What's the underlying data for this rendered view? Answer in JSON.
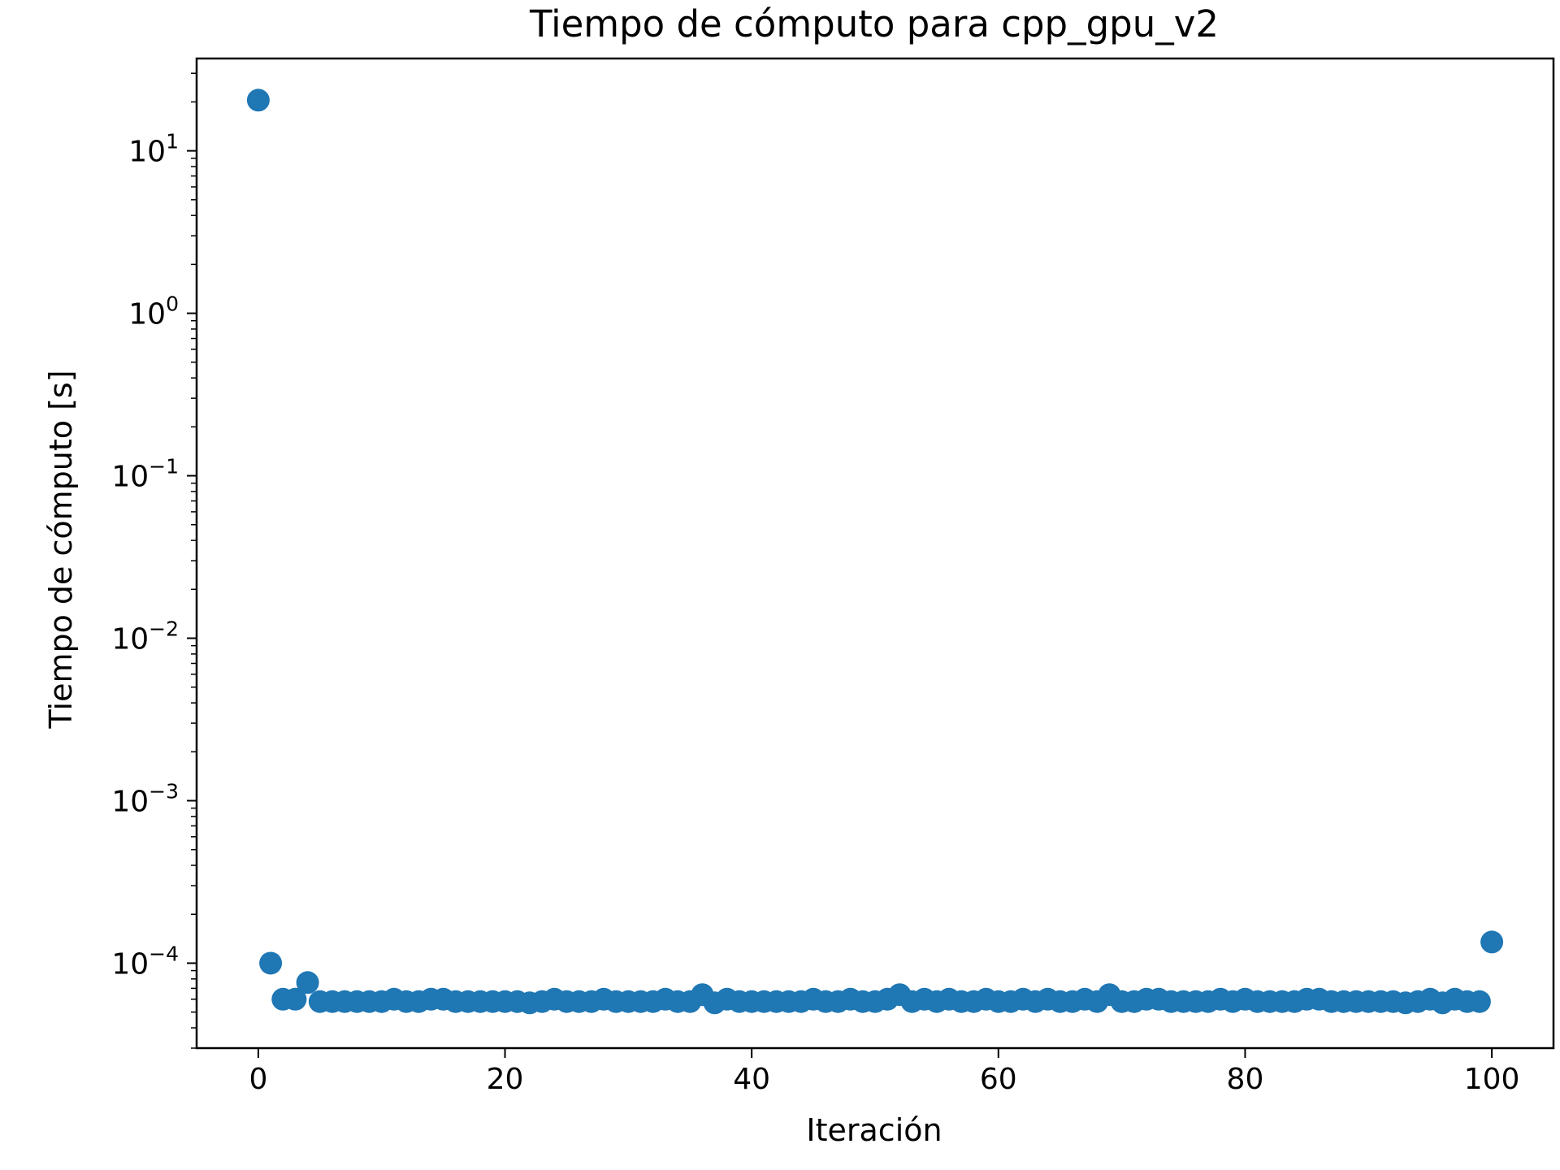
{
  "chart_data": {
    "type": "scatter",
    "title": "Tiempo de cómputo para cpp_gpu_v2",
    "xlabel": "Iteración",
    "ylabel": "Tiempo de cómputo [s]",
    "xlim": [
      -5,
      105
    ],
    "ylim": [
      3e-05,
      37
    ],
    "yscale": "log",
    "grid": false,
    "legend": "none",
    "marker_color": "#1f77b4",
    "x_ticks": [
      0,
      20,
      40,
      60,
      80,
      100
    ],
    "y_ticks": [
      {
        "value": 10,
        "base": "10",
        "exp": "1"
      },
      {
        "value": 1,
        "base": "10",
        "exp": "0"
      },
      {
        "value": 0.1,
        "base": "10",
        "exp": "−1"
      },
      {
        "value": 0.01,
        "base": "10",
        "exp": "−2"
      },
      {
        "value": 0.001,
        "base": "10",
        "exp": "−3"
      },
      {
        "value": 0.0001,
        "base": "10",
        "exp": "−4"
      }
    ],
    "x": [
      0,
      1,
      2,
      3,
      4,
      5,
      6,
      7,
      8,
      9,
      10,
      11,
      12,
      13,
      14,
      15,
      16,
      17,
      18,
      19,
      20,
      21,
      22,
      23,
      24,
      25,
      26,
      27,
      28,
      29,
      30,
      31,
      32,
      33,
      34,
      35,
      36,
      37,
      38,
      39,
      40,
      41,
      42,
      43,
      44,
      45,
      46,
      47,
      48,
      49,
      50,
      51,
      52,
      53,
      54,
      55,
      56,
      57,
      58,
      59,
      60,
      61,
      62,
      63,
      64,
      65,
      66,
      67,
      68,
      69,
      70,
      71,
      72,
      73,
      74,
      75,
      76,
      77,
      78,
      79,
      80,
      81,
      82,
      83,
      84,
      85,
      86,
      87,
      88,
      89,
      90,
      91,
      92,
      93,
      94,
      95,
      96,
      97,
      98,
      99,
      100
    ],
    "y": [
      20.5,
      0.0001,
      6e-05,
      6e-05,
      7.6e-05,
      5.8e-05,
      5.8e-05,
      5.8e-05,
      5.8e-05,
      5.8e-05,
      5.8e-05,
      6e-05,
      5.8e-05,
      5.8e-05,
      6e-05,
      6e-05,
      5.8e-05,
      5.8e-05,
      5.8e-05,
      5.8e-05,
      5.8e-05,
      5.8e-05,
      5.7e-05,
      5.8e-05,
      6e-05,
      5.8e-05,
      5.8e-05,
      5.8e-05,
      6e-05,
      5.8e-05,
      5.8e-05,
      5.8e-05,
      5.8e-05,
      6e-05,
      5.8e-05,
      5.8e-05,
      6.4e-05,
      5.7e-05,
      6e-05,
      5.8e-05,
      5.8e-05,
      5.8e-05,
      5.8e-05,
      5.8e-05,
      5.8e-05,
      6e-05,
      5.8e-05,
      5.8e-05,
      6e-05,
      5.8e-05,
      5.8e-05,
      6e-05,
      6.4e-05,
      5.8e-05,
      6e-05,
      5.8e-05,
      6e-05,
      5.8e-05,
      5.8e-05,
      6e-05,
      5.8e-05,
      5.8e-05,
      6e-05,
      5.8e-05,
      6e-05,
      5.8e-05,
      5.8e-05,
      6e-05,
      5.8e-05,
      6.4e-05,
      5.8e-05,
      5.8e-05,
      6e-05,
      6e-05,
      5.8e-05,
      5.8e-05,
      5.8e-05,
      5.8e-05,
      6e-05,
      5.8e-05,
      6e-05,
      5.8e-05,
      5.8e-05,
      5.8e-05,
      5.8e-05,
      6e-05,
      6e-05,
      5.8e-05,
      5.8e-05,
      5.8e-05,
      5.8e-05,
      5.8e-05,
      5.8e-05,
      5.7e-05,
      5.8e-05,
      6e-05,
      5.7e-05,
      6e-05,
      5.8e-05,
      5.8e-05,
      0.000135
    ]
  }
}
